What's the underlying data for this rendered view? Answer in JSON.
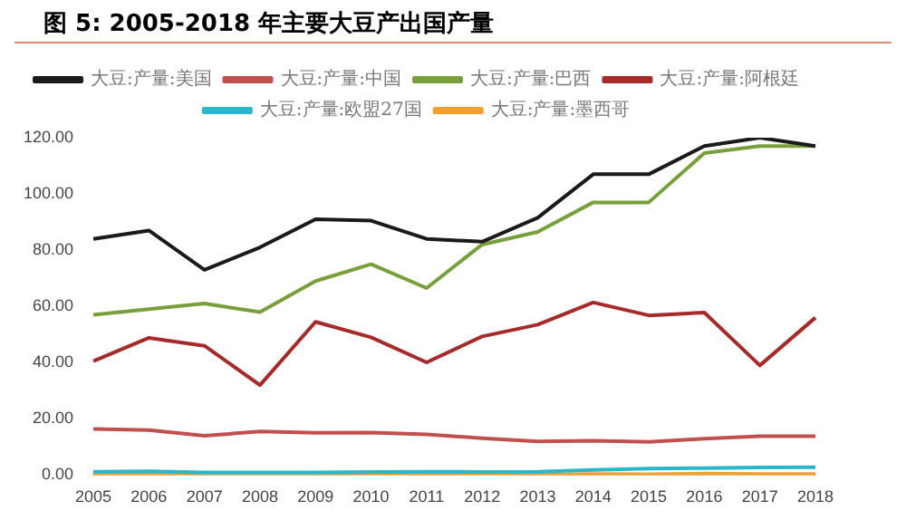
{
  "chart_data": {
    "type": "line",
    "title": "图 5:  2005-2018 年主要大豆产出国产量",
    "categories": [
      "2005",
      "2006",
      "2007",
      "2008",
      "2009",
      "2010",
      "2011",
      "2012",
      "2013",
      "2014",
      "2015",
      "2016",
      "2017",
      "2018"
    ],
    "series": [
      {
        "name": "大豆:产量:美国",
        "color": "#1a1a1a",
        "values": [
          84,
          87,
          73,
          81,
          91,
          90.5,
          84,
          83,
          91.5,
          107,
          107,
          117,
          120,
          117
        ]
      },
      {
        "name": "大豆:产量:中国",
        "color": "#c0504d",
        "values": [
          16.4,
          16,
          14,
          15.5,
          15,
          15.1,
          14.5,
          13.1,
          12,
          12.2,
          11.8,
          12.9,
          13.8,
          13.8
        ]
      },
      {
        "name": "大豆:产量:巴西",
        "color": "#77a03c",
        "values": [
          57,
          59,
          61,
          58,
          69,
          75,
          66.5,
          82,
          86.5,
          97,
          97,
          114.5,
          117,
          117
        ]
      },
      {
        "name": "大豆:产量:阿根廷",
        "color": "#a52a2a",
        "values": [
          40.5,
          48.8,
          46,
          32,
          54.5,
          49,
          40.1,
          49.3,
          53.5,
          61.4,
          56.8,
          57.8,
          39,
          56
        ]
      },
      {
        "name": "大豆:产量:欧盟27国",
        "color": "#2ab7c9",
        "values": [
          1.2,
          1.3,
          0.9,
          0.9,
          0.9,
          1.1,
          1.2,
          1.1,
          1.2,
          1.8,
          2.3,
          2.5,
          2.7,
          2.8
        ]
      },
      {
        "name": "大豆:产量:墨西哥",
        "color": "#f0a030",
        "values": [
          0.2,
          0.1,
          0.1,
          0.2,
          0.1,
          0.2,
          0.2,
          0.3,
          0.2,
          0.4,
          0.3,
          0.5,
          0.4,
          0.4
        ]
      }
    ],
    "ylim": [
      0,
      120
    ],
    "yticks": [
      {
        "value": 0,
        "label": "0.00"
      },
      {
        "value": 20,
        "label": "20.00"
      },
      {
        "value": 40,
        "label": "40.00"
      },
      {
        "value": 60,
        "label": "60.00"
      },
      {
        "value": 80,
        "label": "80.00"
      },
      {
        "value": 100,
        "label": "100.00"
      },
      {
        "value": 120,
        "label": "120.00"
      }
    ],
    "grid": false,
    "legend": "top",
    "marker": "none",
    "line_style": "solid"
  }
}
